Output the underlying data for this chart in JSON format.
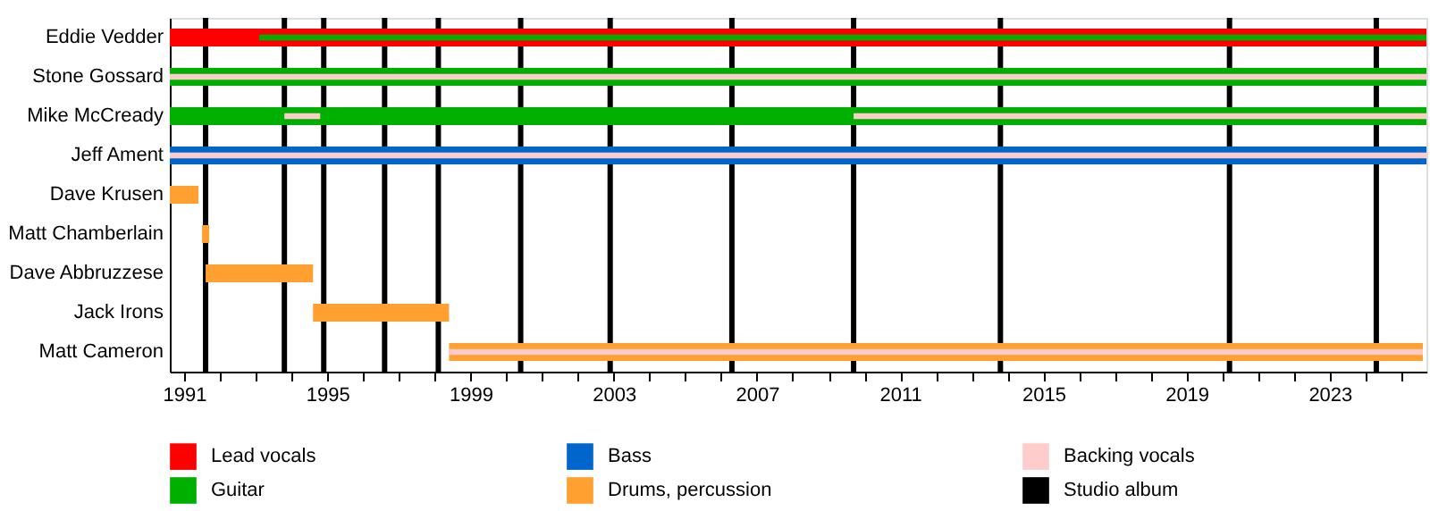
{
  "chart_data": {
    "type": "bar",
    "orientation": "horizontal",
    "categories": [
      "Eddie Vedder",
      "Stone Gossard",
      "Mike McCready",
      "Jeff Ament",
      "Dave Krusen",
      "Matt Chamberlain",
      "Dave Abbruzzese",
      "Jack Irons",
      "Matt Cameron"
    ],
    "series": [
      {
        "name": "Lead vocals",
        "color": "#ff0000",
        "values": [
          35.1,
          null,
          null,
          null,
          null,
          null,
          null,
          null,
          null
        ],
        "base": [
          1990.6,
          null,
          null,
          null,
          null,
          null,
          null,
          null,
          null
        ]
      },
      {
        "name": "Guitar",
        "color": "#00b000",
        "values": [
          null,
          35.1,
          35.1,
          null,
          null,
          null,
          null,
          null,
          null
        ],
        "base": [
          null,
          1990.6,
          1990.6,
          null,
          null,
          null,
          null,
          null,
          null
        ]
      },
      {
        "name": "Bass",
        "color": "#0066cc",
        "values": [
          null,
          null,
          null,
          35.1,
          null,
          null,
          null,
          null,
          null
        ],
        "base": [
          null,
          null,
          null,
          1990.6,
          null,
          null,
          null,
          null,
          null
        ]
      },
      {
        "name": "Drums, percussion",
        "color": "#ffa030",
        "values": [
          null,
          null,
          null,
          null,
          0.8,
          0.2,
          3.0,
          3.8,
          27.2
        ],
        "base": [
          null,
          null,
          null,
          null,
          1990.6,
          1991.5,
          1991.6,
          1994.6,
          1998.4
        ]
      },
      {
        "color": "#00b000",
        "values": [
          32.6,
          null,
          null,
          null,
          null,
          null,
          null,
          null,
          null
        ],
        "base": [
          1993.1,
          null,
          null,
          null,
          null,
          null,
          null,
          null,
          null
        ]
      },
      {
        "name": "Backing vocals",
        "color": "#ffcccc",
        "values": [
          null,
          35.1,
          1.0,
          35.1,
          null,
          null,
          null,
          null,
          27.2
        ],
        "base": [
          null,
          1990.6,
          1993.8,
          1990.6,
          null,
          null,
          null,
          null,
          1998.4
        ]
      },
      {
        "color": "#ffcccc",
        "values": [
          null,
          null,
          16.0,
          null,
          null,
          null,
          null,
          null,
          null
        ],
        "base": [
          null,
          null,
          2009.7,
          null,
          null,
          null,
          null,
          null,
          null
        ]
      }
    ],
    "xlim": [
      1990.6,
      2025.7
    ],
    "xticks": [
      1991,
      {
        "value": 1992,
        "label": null
      },
      {
        "value": 1993,
        "label": null
      },
      {
        "value": 1994,
        "label": null
      },
      1995,
      {
        "value": 1996,
        "label": null
      },
      {
        "value": 1997,
        "label": null
      },
      {
        "value": 1998,
        "label": null
      },
      1999,
      {
        "value": 2000,
        "label": null
      },
      {
        "value": 2001,
        "label": null
      },
      {
        "value": 2002,
        "label": null
      },
      2003,
      {
        "value": 2004,
        "label": null
      },
      {
        "value": 2005,
        "label": null
      },
      {
        "value": 2006,
        "label": null
      },
      2007,
      {
        "value": 2008,
        "label": null
      },
      {
        "value": 2009,
        "label": null
      },
      {
        "value": 2010,
        "label": null
      },
      2011,
      {
        "value": 2012,
        "label": null
      },
      {
        "value": 2013,
        "label": null
      },
      {
        "value": 2014,
        "label": null
      },
      2015,
      {
        "value": 2016,
        "label": null
      },
      {
        "value": 2017,
        "label": null
      },
      {
        "value": 2018,
        "label": null
      },
      2019,
      {
        "value": 2020,
        "label": null
      },
      {
        "value": 2021,
        "label": null
      },
      {
        "value": 2022,
        "label": null
      },
      2023,
      {
        "value": 2024,
        "label": null
      },
      {
        "value": 2025,
        "label": null
      }
    ],
    "ref_lines": [
      {
        "axis": "x",
        "value": 1991.6,
        "label": "Studio album",
        "color": "#000000"
      },
      {
        "axis": "x",
        "value": 1993.8,
        "color": "#000000"
      },
      {
        "axis": "x",
        "value": 1994.9,
        "color": "#000000"
      },
      {
        "axis": "x",
        "value": 1996.6,
        "color": "#000000"
      },
      {
        "axis": "x",
        "value": 1998.1,
        "color": "#000000"
      },
      {
        "axis": "x",
        "value": 2000.4,
        "color": "#000000"
      },
      {
        "axis": "x",
        "value": 2002.9,
        "color": "#000000"
      },
      {
        "axis": "x",
        "value": 2006.3,
        "color": "#000000"
      },
      {
        "axis": "x",
        "value": 2009.7,
        "color": "#000000"
      },
      {
        "axis": "x",
        "value": 2013.8,
        "color": "#000000"
      },
      {
        "axis": "x",
        "value": 2020.2,
        "color": "#000000"
      },
      {
        "axis": "x",
        "value": 2024.3,
        "color": "#000000"
      }
    ],
    "grid": false,
    "legend": "bottom left"
  }
}
